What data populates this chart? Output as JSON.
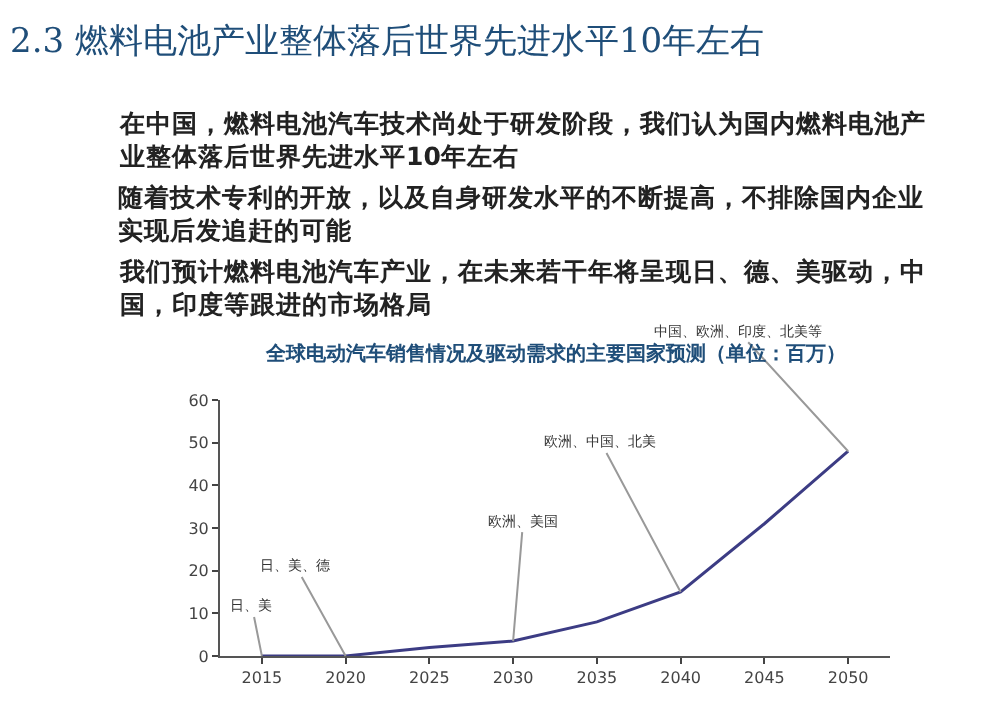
{
  "chart_data": {
    "type": "line",
    "title": "2.3 燃料电池产业整体落后世界先进水平10年左右",
    "subtitle": "全球电动汽车销售情况及驱动需求的主要国家预测（单位：百万）",
    "categories": [
      "2015",
      "2020",
      "2025",
      "2030",
      "2035",
      "2040",
      "2045",
      "2050"
    ],
    "series": [
      {
        "color": "#3c3c84",
        "values": [
          0,
          0,
          2,
          3.5,
          8,
          15,
          31,
          48
        ]
      }
    ],
    "ylim": [
      0,
      60
    ],
    "yticks": [
      0,
      10,
      20,
      30,
      40,
      50,
      60
    ],
    "marker": "none",
    "line_style": "solid",
    "annotations": [
      "在中国，燃料电池汽车技术尚处于研发阶段，我们认为国内燃料电池产业整体落后世界先进水平10年左右",
      "随着技术专利的开放，以及自身研发水平的不断提高，不排除国内企业实现后发追赶的可能",
      "我们预计燃料电池汽车产业，在未来若干年将呈现日、德、美驱动，中国，印度等跟进的市场格局",
      {
        "text": "日、美",
        "x": "2015",
        "y": 0
      },
      {
        "text": "日、美、德",
        "x": "2020",
        "y": 0
      },
      {
        "text": "欧洲、美国",
        "x": "2030",
        "y": 3.5
      },
      {
        "text": "欧洲、中国、北美",
        "x": "2040",
        "y": 15
      },
      {
        "text": "中国、欧洲、印度、北美等",
        "x": "2050",
        "y": 48
      }
    ]
  }
}
